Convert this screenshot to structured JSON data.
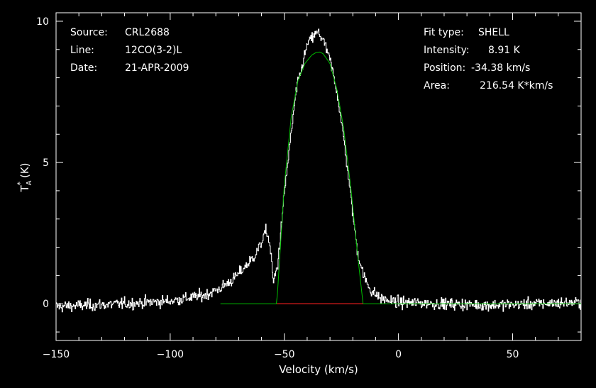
{
  "chart_data": {
    "type": "line",
    "xlabel": "Velocity (km/s)",
    "ylabel": {
      "main": "T",
      "sup": "*",
      "sub": "A",
      "unit": "(K)"
    },
    "xlim": [
      -150,
      80
    ],
    "ylim": [
      -1.3,
      10.3
    ],
    "x_ticks": [
      -150,
      -100,
      -50,
      0,
      50
    ],
    "y_ticks": [
      0,
      5,
      10
    ],
    "grid": false,
    "info_left": [
      {
        "key": "Source:",
        "value": "CRL2688"
      },
      {
        "key": "Line:",
        "value": "12CO(3-2)L"
      },
      {
        "key": "Date:",
        "value": "21-APR-2009"
      }
    ],
    "info_right": [
      {
        "key": "Fit type:",
        "value": "SHELL"
      },
      {
        "key": "Intensity:",
        "value": "8.91 K"
      },
      {
        "key": "Position:",
        "value": "-34.38 km/s"
      },
      {
        "key": "Area:",
        "value": "216.54 K*km/s"
      }
    ],
    "colors": {
      "data": "#ffffff",
      "fit": "#00c000",
      "baseline": "#ff2020",
      "frame": "#ffffff"
    },
    "series": [
      {
        "style": "noisy-step",
        "noise_sigma": 0.18,
        "x": [
          -150,
          -120,
          -100,
          -85,
          -78,
          -72,
          -68,
          -64,
          -61,
          -59,
          -58,
          -57,
          -56,
          -55.5,
          -55,
          -53,
          -50,
          -45,
          -40,
          -37,
          -35,
          -33,
          -30,
          -27,
          -24,
          -21,
          -18,
          -15,
          -12,
          -8,
          -4,
          0,
          20,
          40,
          60,
          80
        ],
        "y": [
          -0.1,
          0.0,
          0.1,
          0.3,
          0.55,
          0.9,
          1.25,
          1.6,
          2.0,
          2.4,
          2.6,
          2.3,
          1.8,
          1.3,
          0.7,
          1.4,
          4.0,
          7.5,
          9.2,
          9.5,
          9.6,
          9.3,
          8.6,
          7.5,
          5.8,
          3.8,
          1.8,
          0.9,
          0.45,
          0.2,
          0.1,
          0.05,
          0.0,
          -0.05,
          0.0,
          0.05
        ]
      },
      {
        "style": "line",
        "x": [
          -78,
          -53.3,
          -50,
          -47,
          -44,
          -41,
          -38,
          -36,
          -34.4,
          -33,
          -30,
          -27,
          -24,
          -21,
          -18,
          -15.5,
          80
        ],
        "y": [
          0,
          0,
          4.2,
          6.6,
          7.9,
          8.5,
          8.8,
          8.9,
          8.91,
          8.85,
          8.5,
          7.6,
          6.2,
          4.2,
          1.8,
          0,
          0
        ]
      },
      {
        "style": "line",
        "x": [
          -53.3,
          -15.5
        ],
        "y": [
          0,
          0
        ]
      }
    ]
  }
}
